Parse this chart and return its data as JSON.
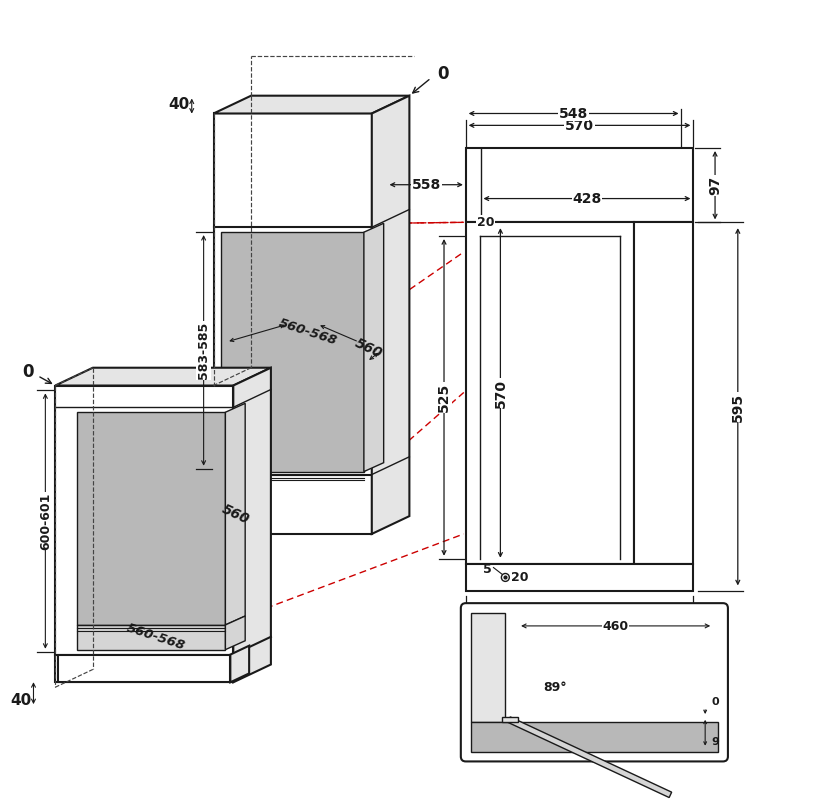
{
  "bg_color": "#ffffff",
  "line_color": "#1a1a1a",
  "gray_fill": "#b8b8b8",
  "gray_side": "#d5d5d5",
  "gray_light": "#e5e5e5",
  "red_color": "#cc0000",
  "annotations": {
    "d0_top": "0",
    "d0_left": "0",
    "d40_top": "40",
    "d40_bot": "40",
    "d583": "583-585",
    "d560_568_up": "560-568",
    "d560_up": "560",
    "d600_601": "600-601",
    "d560_lo": "560",
    "d560_568_lo": "560-568",
    "d570_top": "570",
    "d548": "548",
    "d558": "558",
    "d428": "428",
    "d20_top": "20",
    "d525": "525",
    "d570_body": "570",
    "d5": "5",
    "d20_bot": "20",
    "d595_w": "595",
    "d97": "97",
    "d595_h": "595",
    "d460": "460",
    "d89": "89°",
    "d0_inset": "0",
    "d9": "9"
  }
}
